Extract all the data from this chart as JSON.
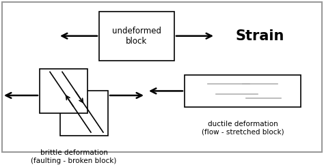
{
  "bg_color": "#ffffff",
  "border_color": "#000000",
  "box_color": "#ffffff",
  "arrow_color": "#000000",
  "text_color": "#000000",
  "strain_label": "Strain",
  "undeformed_label": "undeformed\nblock",
  "brittle_label": "brittle deformation\n(faulting - broken block)",
  "ductile_label": "ductile deformation\n(flow - stretched block)",
  "line_color": "#b0b0b0",
  "outer_border_color": "#999999"
}
